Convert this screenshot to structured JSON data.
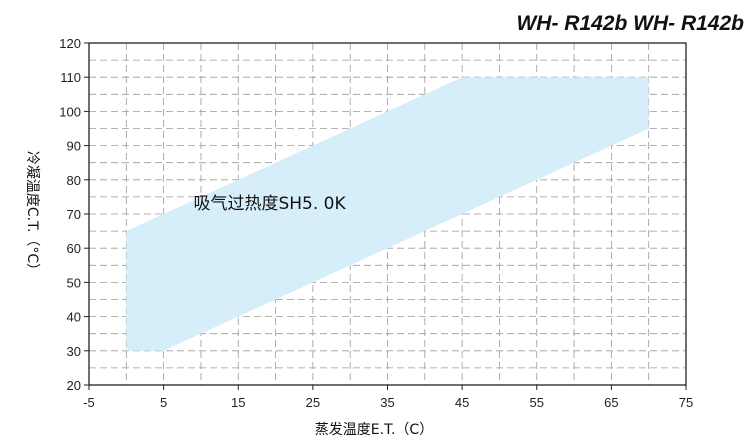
{
  "chart_data": {
    "type": "area",
    "title": "WH- R142b WH- R142b",
    "xlabel": "蒸发温度E.T.（C）",
    "ylabel": "冷凝温度C.T.（°C）",
    "xlim": [
      -5,
      75
    ],
    "ylim": [
      20,
      120
    ],
    "xticks": [
      "-5",
      "5",
      "15",
      "25",
      "35",
      "45",
      "55",
      "65",
      "75"
    ],
    "yticks": [
      "20",
      "30",
      "40",
      "50",
      "60",
      "70",
      "80",
      "90",
      "100",
      "110",
      "120"
    ],
    "grid": true,
    "grid_step_x": 5,
    "grid_step_y": 5,
    "region_color": "#d6eefa",
    "region": {
      "x": [
        0,
        5,
        70,
        70,
        45,
        0
      ],
      "y": [
        30,
        30,
        95,
        110,
        110,
        65
      ]
    },
    "annotation": {
      "text": "吸气过热度SH5. 0K",
      "x": 9,
      "y": 71.5
    }
  }
}
